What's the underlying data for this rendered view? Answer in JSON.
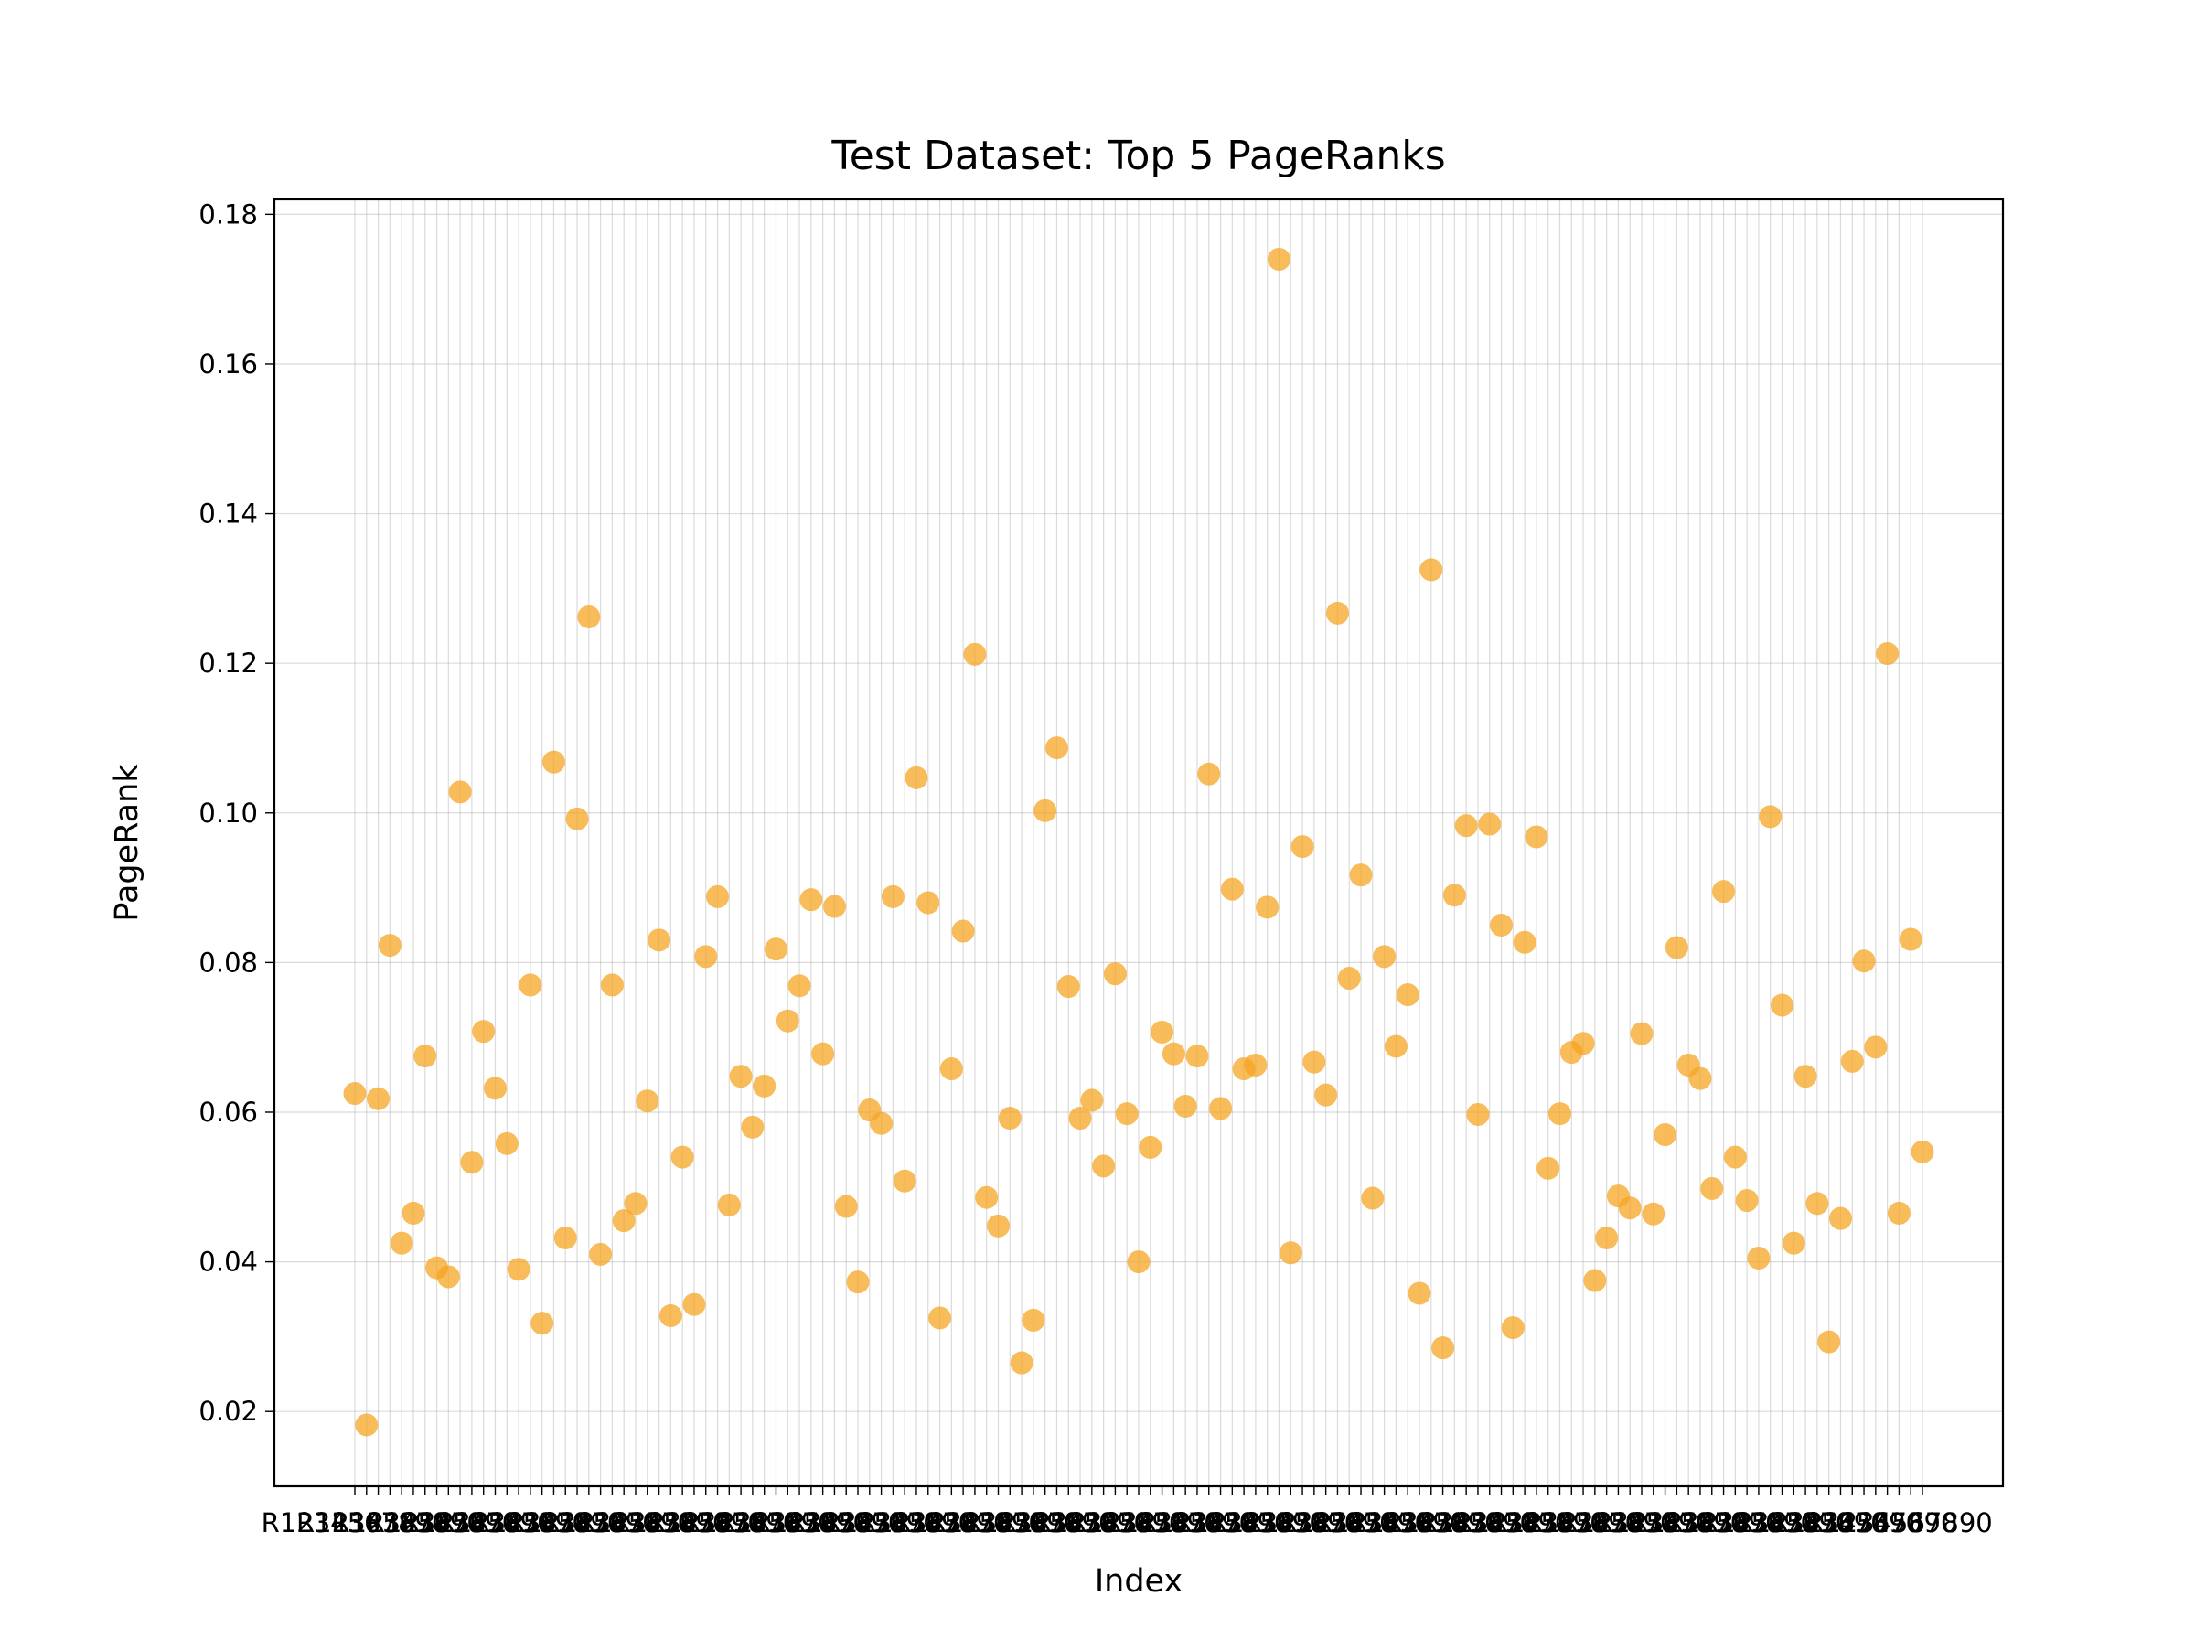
{
  "chart_data": {
    "type": "scatter",
    "title": "Test Dataset: Top 5 PageRanks",
    "xlabel": "Index",
    "ylabel": "PageRank",
    "ylim": [
      0.01,
      0.182
    ],
    "yticks": [
      "0.02",
      "0.04",
      "0.06",
      "0.08",
      "0.10",
      "0.12",
      "0.14",
      "0.16",
      "0.18"
    ],
    "ytick_values": [
      0.02,
      0.04,
      0.06,
      0.08,
      0.1,
      0.12,
      0.14,
      0.16,
      0.18
    ],
    "grid": true,
    "marker_color": "#f5a623",
    "values": [
      0.0625,
      0.0182,
      0.0618,
      0.0823,
      0.0425,
      0.0465,
      0.0675,
      0.0392,
      0.038,
      0.1028,
      0.0533,
      0.0708,
      0.0632,
      0.0558,
      0.039,
      0.077,
      0.0318,
      0.1068,
      0.0432,
      0.0992,
      0.1262,
      0.041,
      0.077,
      0.0455,
      0.0478,
      0.0615,
      0.083,
      0.0328,
      0.054,
      0.0343,
      0.0808,
      0.0888,
      0.0476,
      0.0648,
      0.058,
      0.0635,
      0.0818,
      0.0722,
      0.0769,
      0.0884,
      0.0678,
      0.0875,
      0.0474,
      0.0373,
      0.0603,
      0.0585,
      0.0888,
      0.0508,
      0.1047,
      0.088,
      0.0325,
      0.0658,
      0.0842,
      0.1212,
      0.0486,
      0.0448,
      0.0592,
      0.0265,
      0.0322,
      0.1003,
      0.1087,
      0.0768,
      0.0592,
      0.0616,
      0.0528,
      0.0785,
      0.0598,
      0.04,
      0.0553,
      0.0707,
      0.0678,
      0.0608,
      0.0675,
      0.1052,
      0.0605,
      0.0898,
      0.0658,
      0.0663,
      0.0874,
      0.174,
      0.0412,
      0.0955,
      0.0667,
      0.0623,
      0.1267,
      0.0779,
      0.0917,
      0.0485,
      0.0808,
      0.0688,
      0.0757,
      0.0358,
      0.1325,
      0.0285,
      0.089,
      0.0983,
      0.0597,
      0.0985,
      0.085,
      0.0312,
      0.0827,
      0.0968,
      0.0525,
      0.0598,
      0.068,
      0.0692,
      0.0375,
      0.0432,
      0.0488,
      0.0472,
      0.0705,
      0.0464,
      0.057,
      0.082,
      0.0663,
      0.0645,
      0.0498,
      0.0895,
      0.054,
      0.0482,
      0.0405,
      0.0995,
      0.0743,
      0.0425,
      0.0648,
      0.0478,
      0.0293,
      0.0458,
      0.0668,
      0.0802,
      0.0687,
      0.1213,
      0.0465,
      0.0831,
      0.0547
    ],
    "x_tick_count": 135,
    "x_tick_label_text": "R1234567890"
  }
}
